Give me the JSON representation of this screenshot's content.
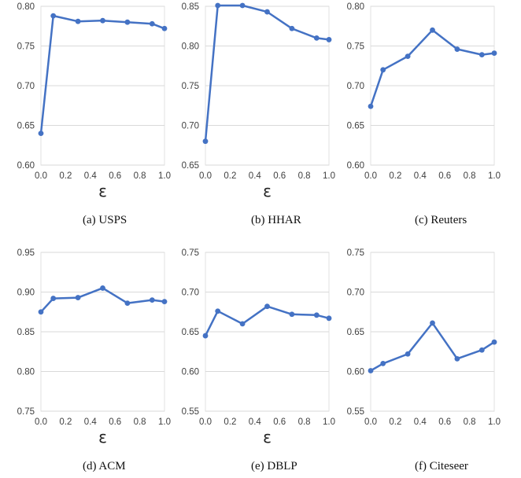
{
  "chart_data": [
    {
      "type": "line",
      "caption": "(a)  USPS",
      "xlabel": "ε",
      "x": [
        0.0,
        0.1,
        0.3,
        0.5,
        0.7,
        0.9,
        1.0
      ],
      "values": [
        0.64,
        0.788,
        0.781,
        0.782,
        0.78,
        0.778,
        0.772
      ],
      "ylim": [
        0.6,
        0.8
      ],
      "yticks": [
        "0.60",
        "0.65",
        "0.70",
        "0.75",
        "0.80"
      ],
      "xticks": [
        "0.0",
        "0.2",
        "0.4",
        "0.6",
        "0.8",
        "1.0"
      ],
      "color": "#4472c4",
      "grid": true
    },
    {
      "type": "line",
      "caption": "(b)  HHAR",
      "xlabel": "ε",
      "x": [
        0.0,
        0.1,
        0.3,
        0.5,
        0.7,
        0.9,
        1.0
      ],
      "values": [
        0.68,
        0.851,
        0.851,
        0.843,
        0.822,
        0.81,
        0.808
      ],
      "ylim": [
        0.65,
        0.85
      ],
      "yticks": [
        "0.65",
        "0.70",
        "0.75",
        "0.80",
        "0.85"
      ],
      "xticks": [
        "0.0",
        "0.2",
        "0.4",
        "0.6",
        "0.8",
        "1.0"
      ],
      "color": "#4472c4",
      "grid": true
    },
    {
      "type": "line",
      "caption": "(c)  Reuters",
      "xlabel": "",
      "x": [
        0.0,
        0.1,
        0.3,
        0.5,
        0.7,
        0.9,
        1.0
      ],
      "values": [
        0.674,
        0.72,
        0.737,
        0.77,
        0.746,
        0.739,
        0.741
      ],
      "ylim": [
        0.6,
        0.8
      ],
      "yticks": [
        "0.60",
        "0.65",
        "0.70",
        "0.75",
        "0.80"
      ],
      "xticks": [
        "0.0",
        "0.2",
        "0.4",
        "0.6",
        "0.8",
        "1.0"
      ],
      "color": "#4472c4",
      "grid": true
    },
    {
      "type": "line",
      "caption": "(d)  ACM",
      "xlabel": "ε",
      "x": [
        0.0,
        0.1,
        0.3,
        0.5,
        0.7,
        0.9,
        1.0
      ],
      "values": [
        0.875,
        0.892,
        0.893,
        0.905,
        0.886,
        0.89,
        0.888
      ],
      "ylim": [
        0.75,
        0.95
      ],
      "yticks": [
        "0.75",
        "0.80",
        "0.85",
        "0.90",
        "0.95"
      ],
      "xticks": [
        "0.0",
        "0.2",
        "0.4",
        "0.6",
        "0.8",
        "1.0"
      ],
      "color": "#4472c4",
      "grid": true
    },
    {
      "type": "line",
      "caption": "(e)  DBLP",
      "xlabel": "ε",
      "x": [
        0.0,
        0.1,
        0.3,
        0.5,
        0.7,
        0.9,
        1.0
      ],
      "values": [
        0.645,
        0.676,
        0.66,
        0.682,
        0.672,
        0.671,
        0.667
      ],
      "ylim": [
        0.55,
        0.75
      ],
      "yticks": [
        "0.55",
        "0.60",
        "0.65",
        "0.70",
        "0.75"
      ],
      "xticks": [
        "0.0",
        "0.2",
        "0.4",
        "0.6",
        "0.8",
        "1.0"
      ],
      "color": "#4472c4",
      "grid": true
    },
    {
      "type": "line",
      "caption": "(f)  Citeseer",
      "xlabel": "",
      "x": [
        0.0,
        0.1,
        0.3,
        0.5,
        0.7,
        0.9,
        1.0
      ],
      "values": [
        0.601,
        0.61,
        0.622,
        0.661,
        0.616,
        0.627,
        0.637
      ],
      "ylim": [
        0.55,
        0.75
      ],
      "yticks": [
        "0.55",
        "0.60",
        "0.65",
        "0.70",
        "0.75"
      ],
      "xticks": [
        "0.0",
        "0.2",
        "0.4",
        "0.6",
        "0.8",
        "1.0"
      ],
      "color": "#4472c4",
      "grid": true
    }
  ]
}
